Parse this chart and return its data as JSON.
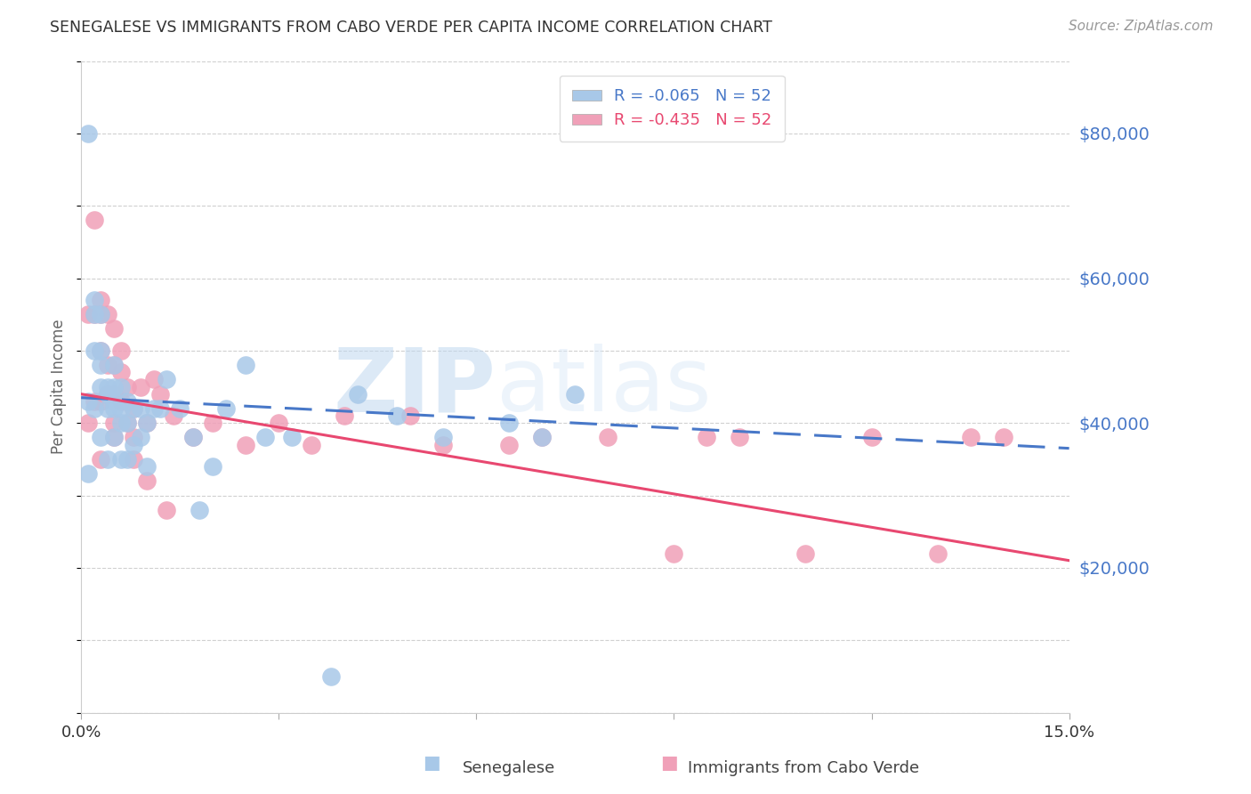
{
  "title": "SENEGALESE VS IMMIGRANTS FROM CABO VERDE PER CAPITA INCOME CORRELATION CHART",
  "source": "Source: ZipAtlas.com",
  "ylabel": "Per Capita Income",
  "xlim": [
    0.0,
    0.15
  ],
  "ylim": [
    0,
    90000
  ],
  "yticks": [
    20000,
    40000,
    60000,
    80000
  ],
  "ytick_labels": [
    "$20,000",
    "$40,000",
    "$60,000",
    "$80,000"
  ],
  "background_color": "#ffffff",
  "grid_color": "#d0d0d0",
  "senegalese_color": "#a8c8e8",
  "cabo_verde_color": "#f0a0b8",
  "senegalese_line_color": "#4878c8",
  "cabo_verde_line_color": "#e84870",
  "legend_R_blue": "R = -0.065",
  "legend_N_blue": "N = 52",
  "legend_R_pink": "R = -0.435",
  "legend_N_pink": "N = 52",
  "watermark_zip": "ZIP",
  "watermark_atlas": "atlas",
  "sen_x": [
    0.001,
    0.001,
    0.001,
    0.002,
    0.002,
    0.002,
    0.002,
    0.003,
    0.003,
    0.003,
    0.003,
    0.003,
    0.004,
    0.004,
    0.004,
    0.004,
    0.005,
    0.005,
    0.005,
    0.005,
    0.005,
    0.006,
    0.006,
    0.006,
    0.006,
    0.007,
    0.007,
    0.007,
    0.008,
    0.008,
    0.009,
    0.009,
    0.01,
    0.01,
    0.011,
    0.012,
    0.013,
    0.015,
    0.017,
    0.018,
    0.02,
    0.022,
    0.025,
    0.028,
    0.032,
    0.038,
    0.042,
    0.048,
    0.055,
    0.065,
    0.07,
    0.075
  ],
  "sen_y": [
    80000,
    43000,
    33000,
    57000,
    55000,
    50000,
    42000,
    55000,
    50000,
    48000,
    45000,
    38000,
    45000,
    44000,
    42000,
    35000,
    48000,
    45000,
    43000,
    42000,
    38000,
    45000,
    42000,
    40000,
    35000,
    43000,
    40000,
    35000,
    42000,
    37000,
    42000,
    38000,
    40000,
    34000,
    42000,
    42000,
    46000,
    42000,
    38000,
    28000,
    34000,
    42000,
    48000,
    38000,
    38000,
    5000,
    44000,
    41000,
    38000,
    40000,
    38000,
    44000
  ],
  "cabo_x": [
    0.001,
    0.001,
    0.002,
    0.002,
    0.002,
    0.003,
    0.003,
    0.003,
    0.003,
    0.004,
    0.004,
    0.004,
    0.005,
    0.005,
    0.005,
    0.005,
    0.006,
    0.006,
    0.006,
    0.007,
    0.007,
    0.008,
    0.008,
    0.009,
    0.01,
    0.011,
    0.012,
    0.014,
    0.017,
    0.02,
    0.025,
    0.03,
    0.035,
    0.04,
    0.05,
    0.055,
    0.065,
    0.07,
    0.08,
    0.09,
    0.095,
    0.1,
    0.11,
    0.12,
    0.13,
    0.135,
    0.14,
    0.003,
    0.005,
    0.008,
    0.01,
    0.013
  ],
  "cabo_y": [
    55000,
    40000,
    68000,
    55000,
    43000,
    57000,
    55000,
    50000,
    43000,
    55000,
    48000,
    44000,
    53000,
    48000,
    44000,
    38000,
    50000,
    47000,
    43000,
    45000,
    40000,
    42000,
    38000,
    45000,
    40000,
    46000,
    44000,
    41000,
    38000,
    40000,
    37000,
    40000,
    37000,
    41000,
    41000,
    37000,
    37000,
    38000,
    38000,
    22000,
    38000,
    38000,
    22000,
    38000,
    22000,
    38000,
    38000,
    35000,
    40000,
    35000,
    32000,
    28000
  ]
}
